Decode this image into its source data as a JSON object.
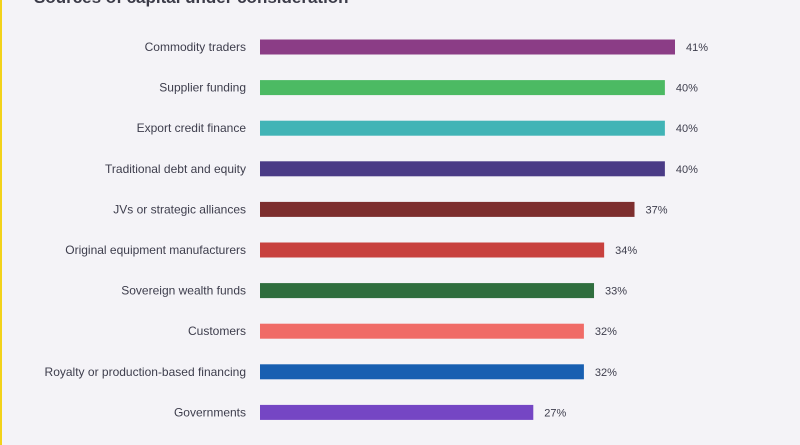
{
  "chart_title": "Sources of capital under consideration",
  "chart_data": {
    "type": "bar",
    "orientation": "horizontal",
    "title": "Sources of capital under consideration",
    "categories": [
      "Commodity traders",
      "Supplier funding",
      "Export credit finance",
      "Traditional debt and equity",
      "JVs or strategic alliances",
      "Original equipment manufacturers",
      "Sovereign wealth funds",
      "Customers",
      "Royalty or production-based financing",
      "Governments"
    ],
    "values": [
      41,
      40,
      40,
      40,
      37,
      34,
      33,
      32,
      32,
      27
    ],
    "value_labels": [
      "41%",
      "40%",
      "40%",
      "40%",
      "37%",
      "34%",
      "33%",
      "32%",
      "32%",
      "27%"
    ],
    "colors": [
      "#8b3d86",
      "#4cba63",
      "#41b4b6",
      "#4a3b86",
      "#7d2e2e",
      "#c8413e",
      "#2f6e3e",
      "#f06b67",
      "#185fb1",
      "#7546c4"
    ],
    "xlabel": "",
    "ylabel": "",
    "xlim": [
      0,
      41
    ],
    "grid": false,
    "legend": "none"
  }
}
